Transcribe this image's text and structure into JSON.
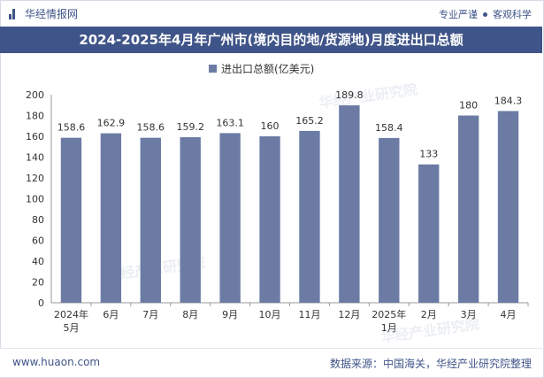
{
  "header": {
    "brand": "华经情报网",
    "tag1": "专业严谨",
    "tag2": "客观科学"
  },
  "title": "2024-2025年4月年广州市(境内目的地/货源地)月度进出口总额",
  "footer": {
    "site": "www.huaon.com",
    "source": "数据来源：中国海关，华经产业研究院整理"
  },
  "watermark": "华经产业研究院",
  "colors": {
    "bar": "#6b7ba4",
    "header": "#3f5488"
  },
  "chart_data": {
    "type": "bar",
    "title": "2024-2025年4月年广州市(境内目的地/货源地)月度进出口总额",
    "legend": "进出口总额(亿美元)",
    "legend_position": "top-center",
    "categories": [
      [
        "2024年",
        "5月"
      ],
      [
        "6月"
      ],
      [
        "7月"
      ],
      [
        "8月"
      ],
      [
        "9月"
      ],
      [
        "10月"
      ],
      [
        "11月"
      ],
      [
        "12月"
      ],
      [
        "2025年",
        "1月"
      ],
      [
        "2月"
      ],
      [
        "3月"
      ],
      [
        "4月"
      ]
    ],
    "values": [
      158.6,
      162.9,
      158.6,
      159.2,
      163.1,
      160,
      165.2,
      189.8,
      158.4,
      133,
      180,
      184.3
    ],
    "ylim": [
      0,
      200
    ],
    "yticks": [
      0,
      20,
      40,
      60,
      80,
      100,
      120,
      140,
      160,
      180,
      200
    ],
    "xlabel": "",
    "ylabel": "",
    "grid": false
  }
}
